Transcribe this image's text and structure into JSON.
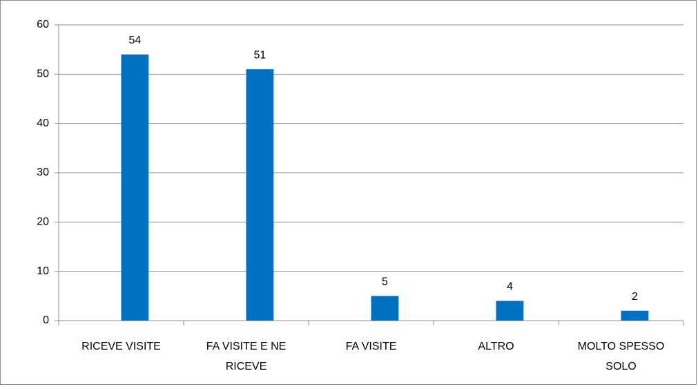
{
  "chart_data": {
    "type": "bar",
    "categories": [
      "RICEVE VISITE",
      "FA VISITE E NE RICEVE",
      "FA VISITE",
      "ALTRO",
      "MOLTO SPESSO SOLO"
    ],
    "values": [
      54,
      51,
      5,
      4,
      2
    ],
    "color": "#0070c0",
    "ylim": [
      0,
      60
    ],
    "yticks": [
      0,
      10,
      20,
      30,
      40,
      50,
      60
    ],
    "grid": true
  }
}
